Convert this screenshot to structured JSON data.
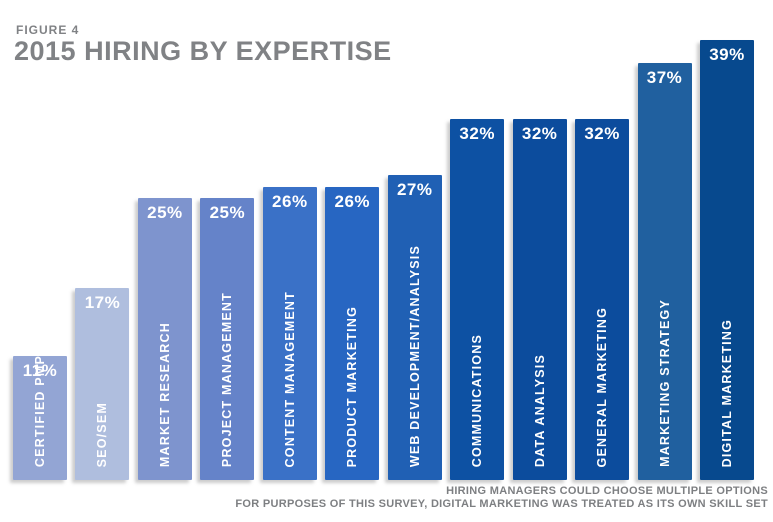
{
  "header": {
    "figure_label": "FIGURE 4",
    "title": "2015 HIRING BY EXPERTISE"
  },
  "chart_data": {
    "type": "bar",
    "title": "2015 HIRING BY EXPERTISE",
    "orientation": "vertical",
    "unit": "%",
    "ylim": [
      0,
      39
    ],
    "grid": false,
    "legend": false,
    "value_labels": "inside-top, white bold",
    "category_labels": "inside-bottom, rotated vertical, white bold",
    "categories": [
      "CERTIFIED PMP",
      "SEO/SEM",
      "MARKET RESEARCH",
      "PROJECT MANAGEMENT",
      "CONTENT MANAGEMENT",
      "PRODUCT MARKETING",
      "WEB DEVELOPMENT/ANALYSIS",
      "COMMUNICATIONS",
      "DATA ANALYSIS",
      "GENERAL MARKETING",
      "MARKETING STRATEGY",
      "DIGITAL MARKETING"
    ],
    "values": [
      11,
      17,
      25,
      25,
      26,
      26,
      27,
      32,
      32,
      32,
      37,
      39
    ],
    "value_labels_text": [
      "11%",
      "17%",
      "25%",
      "25%",
      "26%",
      "26%",
      "27%",
      "32%",
      "32%",
      "32%",
      "37%",
      "39%"
    ],
    "bar_colors": [
      "#93a5d4",
      "#afbede",
      "#7e94ce",
      "#6583c9",
      "#3a71c7",
      "#2766c2",
      "#2060b4",
      "#0d51a3",
      "#0c4c9d",
      "#0c4c9d",
      "#20609f",
      "#07498e"
    ]
  },
  "footer": {
    "line1": "HIRING MANAGERS COULD CHOOSE MULTIPLE OPTIONS",
    "line2": "FOR PURPOSES OF THIS SURVEY, DIGITAL MARKETING WAS TREATED AS ITS OWN SKILL SET"
  },
  "colors": {
    "background": "#ffffff",
    "title_gray": "#808285",
    "footer_gray": "#7d7f82",
    "label_white": "#ffffff"
  }
}
